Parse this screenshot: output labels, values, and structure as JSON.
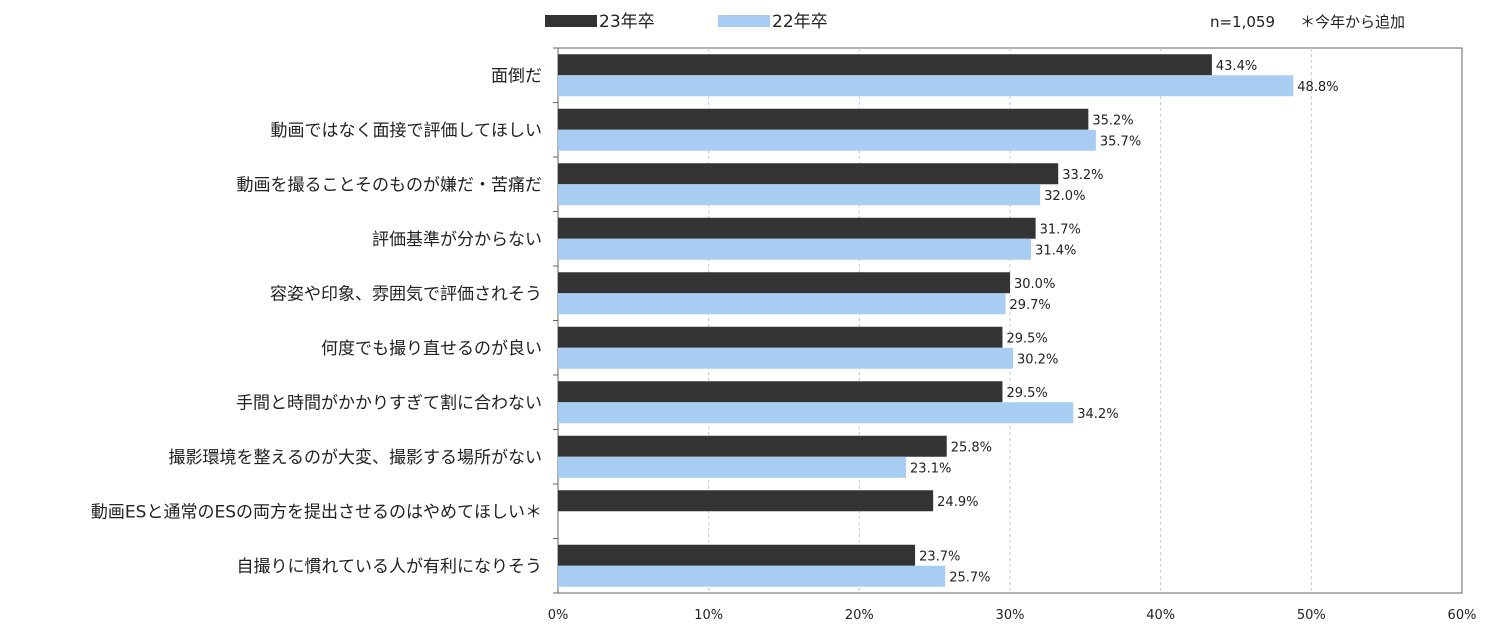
{
  "chart_data": {
    "type": "bar",
    "orientation": "horizontal",
    "title": "",
    "xlabel": "",
    "ylabel": "",
    "xlim": [
      0,
      60
    ],
    "ticks": [
      0,
      10,
      20,
      30,
      40,
      50,
      60
    ],
    "tick_labels": [
      "0%",
      "10%",
      "20%",
      "30%",
      "40%",
      "50%",
      "60%"
    ],
    "grid": true,
    "legend_position": "top",
    "categories": [
      "面倒だ",
      "動画ではなく面接で評価してほしい",
      "動画を撮ることそのものが嫌だ・苦痛だ",
      "評価基準が分からない",
      "容姿や印象、雰囲気で評価されそう",
      "何度でも撮り直せるのが良い",
      "手間と時間がかかりすぎて割に合わない",
      "撮影環境を整えるのが大変、撮影する場所がない",
      "動画ESと通常のESの両方を提出させるのはやめてほしい＊",
      "自撮りに慣れている人が有利になりそう"
    ],
    "series": [
      {
        "name": "23年卒",
        "color": "#333333",
        "values": [
          43.4,
          35.2,
          33.2,
          31.7,
          30.0,
          29.5,
          29.5,
          25.8,
          24.9,
          23.7
        ],
        "labels": [
          "43.4%",
          "35.2%",
          "33.2%",
          "31.7%",
          "30.0%",
          "29.5%",
          "29.5%",
          "25.8%",
          "24.9%",
          "23.7%"
        ]
      },
      {
        "name": "22年卒",
        "color": "#a9cdf2",
        "values": [
          48.8,
          35.7,
          32.0,
          31.4,
          29.7,
          30.2,
          34.2,
          23.1,
          null,
          25.7
        ],
        "labels": [
          "48.8%",
          "35.7%",
          "32.0%",
          "31.4%",
          "29.7%",
          "30.2%",
          "34.2%",
          "23.1%",
          null,
          "25.7%"
        ]
      }
    ],
    "annotations": [
      "n=1,059",
      "＊今年から追加"
    ]
  }
}
